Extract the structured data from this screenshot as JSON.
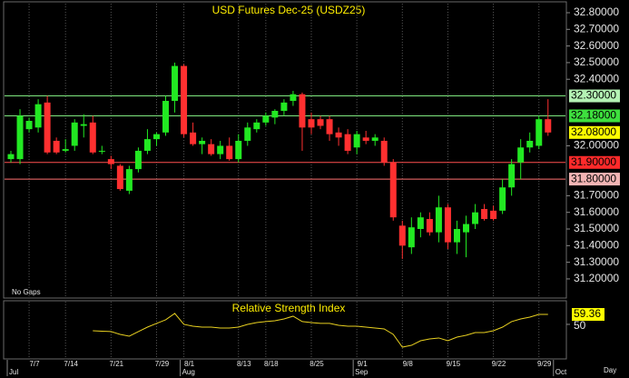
{
  "x_axis": {
    "categories": [
      null,
      null,
      "7/7",
      null,
      null,
      null,
      "7/14",
      null,
      null,
      null,
      null,
      "7/21",
      null,
      null,
      null,
      null,
      "7/29",
      null,
      null,
      "8/1",
      null,
      null,
      null,
      null,
      null,
      "8/13",
      null,
      null,
      "8/18",
      null,
      null,
      null,
      null,
      "8/25",
      null,
      null,
      null,
      null,
      "9/1",
      null,
      null,
      null,
      null,
      "9/8",
      null,
      null,
      null,
      null,
      "9/15",
      null,
      null,
      null,
      null,
      "9/22",
      null,
      null,
      null,
      null,
      "9/29",
      null
    ],
    "months": [
      {
        "label": "Jul",
        "index": 0
      },
      {
        "label": "Aug",
        "index": 19
      },
      {
        "label": "Sep",
        "index": 38
      },
      {
        "label": "Oct",
        "index": 60
      }
    ],
    "unit": "Day",
    "grid": true
  },
  "chart_data": [
    {
      "type": "candlestick",
      "title": "USD Futures Dec-25 (USDZ25)",
      "annotations": [
        "No Gaps"
      ],
      "up_color": "#22e822",
      "down_color": "#ff3030",
      "open": [
        31.92,
        31.92,
        32.1,
        32.11,
        32.26,
        32.03,
        31.97,
        32.0,
        32.12,
        32.14,
        31.97,
        31.92,
        31.88,
        31.73,
        31.86,
        31.97,
        32.04,
        32.08,
        32.27,
        32.48,
        32.08,
        32.01,
        32.01,
        31.95,
        32.0,
        31.92,
        32.03,
        32.1,
        32.14,
        32.17,
        32.21,
        32.27,
        32.31,
        32.16,
        32.16,
        32.16,
        32.08,
        32.07,
        31.99,
        32.05,
        32.03,
        32.03,
        31.9,
        31.52,
        31.39,
        31.5,
        31.56,
        31.48,
        31.63,
        31.42,
        31.48,
        31.53,
        31.62,
        31.61,
        31.61,
        31.75,
        31.9,
        31.99,
        32.0,
        32.16
      ],
      "high": [
        31.97,
        32.22,
        32.17,
        32.28,
        32.3,
        32.05,
        32.04,
        32.16,
        32.19,
        32.18,
        32.0,
        31.94,
        31.89,
        31.88,
        31.99,
        32.1,
        32.08,
        32.3,
        32.5,
        32.49,
        32.14,
        32.05,
        32.04,
        32.03,
        32.05,
        32.07,
        32.14,
        32.16,
        32.2,
        32.22,
        32.28,
        32.33,
        32.32,
        32.2,
        32.18,
        32.18,
        32.11,
        32.1,
        32.09,
        32.09,
        32.07,
        32.05,
        31.92,
        31.55,
        31.57,
        31.6,
        31.6,
        31.7,
        31.65,
        31.55,
        31.58,
        31.65,
        31.65,
        31.64,
        31.8,
        31.92,
        32.04,
        32.08,
        32.18,
        32.28
      ],
      "low": [
        31.9,
        31.89,
        32.08,
        32.08,
        31.95,
        31.95,
        31.96,
        31.97,
        32.05,
        31.95,
        31.95,
        31.86,
        31.73,
        31.71,
        31.84,
        31.95,
        32.0,
        32.06,
        32.2,
        32.05,
        32.0,
        31.95,
        31.94,
        31.92,
        31.91,
        31.9,
        32.0,
        32.08,
        32.12,
        32.13,
        32.18,
        32.24,
        31.97,
        32.07,
        32.1,
        32.03,
        32.0,
        31.95,
        31.95,
        32.01,
        32.0,
        31.88,
        31.55,
        31.32,
        31.35,
        31.45,
        31.46,
        31.42,
        31.38,
        31.35,
        31.33,
        31.5,
        31.55,
        31.55,
        31.59,
        31.7,
        31.8,
        31.96,
        31.98,
        32.06
      ],
      "close": [
        31.95,
        32.18,
        32.15,
        32.25,
        31.96,
        31.96,
        31.98,
        32.14,
        32.13,
        31.96,
        31.97,
        31.89,
        31.74,
        31.86,
        31.97,
        32.04,
        32.07,
        32.27,
        32.48,
        32.07,
        32.01,
        32.03,
        31.95,
        32.0,
        31.92,
        32.03,
        32.11,
        32.14,
        32.18,
        32.21,
        32.26,
        32.31,
        32.11,
        32.11,
        32.12,
        32.07,
        32.05,
        31.97,
        32.07,
        32.03,
        32.05,
        31.9,
        31.57,
        31.4,
        31.51,
        31.57,
        31.48,
        31.63,
        31.42,
        31.5,
        31.53,
        31.6,
        31.56,
        31.56,
        31.75,
        31.89,
        31.99,
        32.03,
        32.16,
        32.08
      ],
      "last_label": "32.08000",
      "last_color": "#ffff00",
      "levels": [
        {
          "value": 32.3,
          "label": "32.30000",
          "line_color": "#7fe87f",
          "box_color": "#b4f2b4"
        },
        {
          "value": 32.18,
          "label": "32.18000",
          "line_color": "#7fe87f",
          "box_color": "#3ee03e"
        },
        {
          "value": 31.9,
          "label": "31.90000",
          "line_color": "#ff5050",
          "box_color": "#ff2a2a"
        },
        {
          "value": 31.8,
          "label": "31.80000",
          "line_color": "#ff7070",
          "box_color": "#f2b4b4"
        }
      ],
      "ylim": [
        31.085,
        32.86
      ],
      "yticks": [
        {
          "value": 32.8,
          "label": "32.80000"
        },
        {
          "value": 32.7,
          "label": "32.70000"
        },
        {
          "value": 32.6,
          "label": "32.60000"
        },
        {
          "value": 32.5,
          "label": "32.50000"
        },
        {
          "value": 32.4,
          "label": "32.40000"
        },
        {
          "value": 32.0,
          "label": "32.00000"
        },
        {
          "value": 31.7,
          "label": "31.70000"
        },
        {
          "value": 31.6,
          "label": "31.60000"
        },
        {
          "value": 31.5,
          "label": "31.50000"
        },
        {
          "value": 31.4,
          "label": "31.40000"
        },
        {
          "value": 31.3,
          "label": "31.30000"
        },
        {
          "value": 31.2,
          "label": "31.20000"
        }
      ]
    },
    {
      "type": "line",
      "title": "Relative Strength Index",
      "color": "#e8d020",
      "last_color": "#ffff00",
      "values": [
        null,
        null,
        null,
        null,
        null,
        null,
        null,
        null,
        null,
        44.0,
        43.6,
        43.2,
        40.6,
        38.9,
        43.2,
        47.4,
        50.9,
        54.3,
        60.3,
        50.0,
        48.3,
        47.4,
        47.4,
        46.6,
        46.6,
        47.4,
        50.0,
        51.7,
        52.6,
        53.4,
        55.1,
        57.7,
        52.6,
        51.7,
        50.9,
        50.9,
        49.1,
        48.3,
        48.3,
        47.4,
        46.6,
        45.7,
        40.6,
        28.6,
        30.3,
        34.6,
        36.3,
        37.2,
        34.6,
        38.0,
        39.7,
        42.3,
        42.3,
        44.0,
        47.4,
        52.6,
        55.1,
        56.8,
        59.4,
        59.36
      ],
      "ylim": [
        17.5,
        72.2
      ],
      "yticks": [
        50
      ]
    }
  ]
}
